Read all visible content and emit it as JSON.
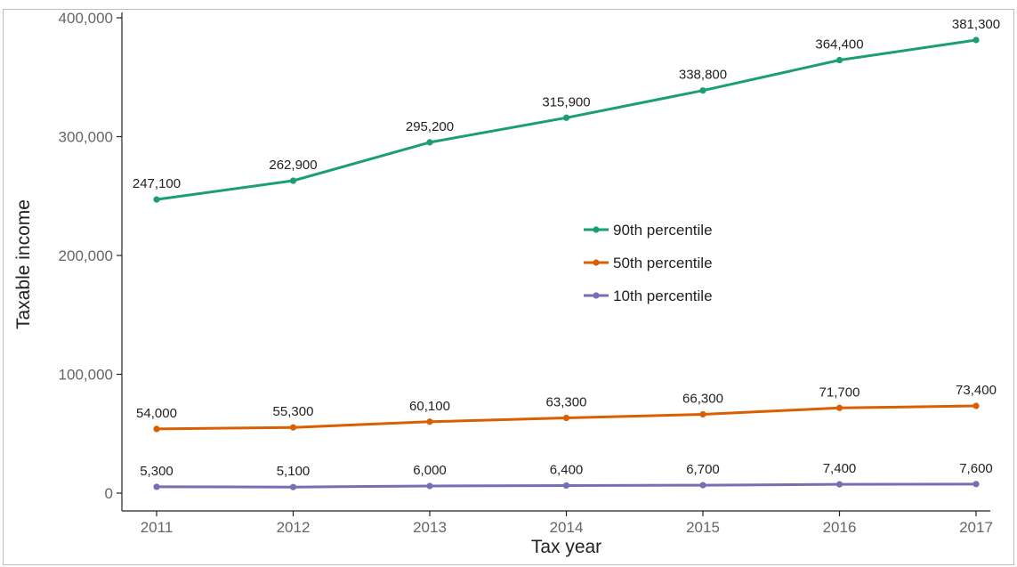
{
  "chart_data": {
    "type": "line",
    "x": [
      2011,
      2012,
      2013,
      2014,
      2015,
      2016,
      2017
    ],
    "x_tick_labels": [
      "2011",
      "2012",
      "2013",
      "2014",
      "2015",
      "2016",
      "2017"
    ],
    "xlabel": "Tax year",
    "ylabel": "Taxable income",
    "ylim": [
      0,
      400000
    ],
    "y_ticks": [
      0,
      100000,
      200000,
      300000,
      400000
    ],
    "y_tick_labels": [
      "0",
      "100,000",
      "200,000",
      "300,000",
      "400,000"
    ],
    "grid": false,
    "legend_position": "center-right",
    "series": [
      {
        "name": "90th percentile",
        "color": "#1b9e77",
        "values": [
          247100,
          262900,
          295200,
          315900,
          338800,
          364400,
          381300
        ],
        "labels": [
          "247,100",
          "262,900",
          "295,200",
          "315,900",
          "338,800",
          "364,400",
          "381,300"
        ]
      },
      {
        "name": "50th percentile",
        "color": "#d95f02",
        "values": [
          54000,
          55300,
          60100,
          63300,
          66300,
          71700,
          73400
        ],
        "labels": [
          "54,000",
          "55,300",
          "60,100",
          "63,300",
          "66,300",
          "71,700",
          "73,400"
        ]
      },
      {
        "name": "10th percentile",
        "color": "#7570b3",
        "values": [
          5300,
          5100,
          6000,
          6400,
          6700,
          7400,
          7600
        ],
        "labels": [
          "5,300",
          "5,100",
          "6,000",
          "6,400",
          "6,700",
          "7,400",
          "7,600"
        ]
      }
    ]
  }
}
